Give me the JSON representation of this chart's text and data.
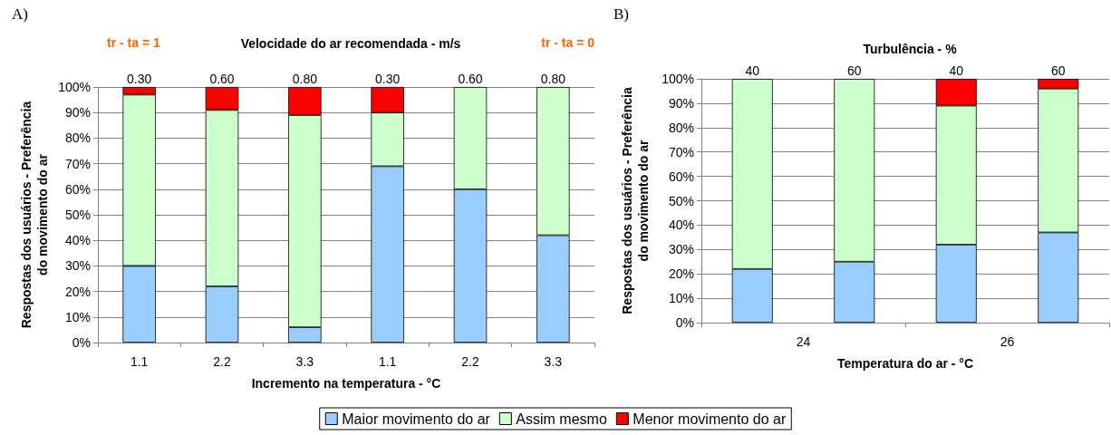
{
  "chart_data": [
    {
      "type": "bar",
      "title": "A)",
      "subtitle": "Velocidade do ar recomendada - m/s",
      "xlabel": "Incremento na temperatura - °C",
      "ylabel": "Respostas dos usuários - Preferência\ndo movimento do ar",
      "categories": [
        "1.1",
        "2.2",
        "3.3",
        "1.1",
        "2.2",
        "3.3"
      ],
      "annotations": [
        "0.30",
        "0.60",
        "0.80",
        "0.30",
        "0.60",
        "0.80",
        "tr - ta = 1",
        "tr - ta = 0"
      ],
      "stacked": true,
      "grid": "y",
      "legend": "bottom",
      "ylim": [
        0,
        100
      ],
      "yticks": [
        {
          "value": 0,
          "label": "0%"
        },
        {
          "value": 10,
          "label": "10%"
        },
        {
          "value": 20,
          "label": "20%"
        },
        {
          "value": 30,
          "label": "30%"
        },
        {
          "value": 40,
          "label": "40%"
        },
        {
          "value": 50,
          "label": "50%"
        },
        {
          "value": 60,
          "label": "60%"
        },
        {
          "value": 70,
          "label": "70%"
        },
        {
          "value": 80,
          "label": "80%"
        },
        {
          "value": 90,
          "label": "90%"
        },
        {
          "value": 100,
          "label": "100%"
        }
      ],
      "series": [
        {
          "name": "Maior movimento do ar",
          "color": "#99ccff",
          "values": [
            30,
            22,
            6,
            69,
            60,
            42
          ]
        },
        {
          "name": "Assim mesmo",
          "color": "#ccffcc",
          "values": [
            67,
            69,
            83,
            21,
            40,
            58
          ]
        },
        {
          "name": "Menor movimento do ar",
          "color": "#ff0000",
          "values": [
            3,
            9,
            11,
            10,
            0,
            0
          ]
        }
      ]
    },
    {
      "type": "bar",
      "title": "B)",
      "subtitle": "Turbulência - %",
      "xlabel": "Temperatura do ar - °C",
      "ylabel": "Respostas dos usuários - Preferência\ndo movimento do ar",
      "categories": [
        "40",
        "60",
        "40",
        "60"
      ],
      "annotations": [
        "24",
        "26"
      ],
      "stacked": true,
      "grid": "y",
      "ylim": [
        0,
        100
      ],
      "yticks": [
        {
          "value": 0,
          "label": "0%"
        },
        {
          "value": 10,
          "label": "10%"
        },
        {
          "value": 20,
          "label": "20%"
        },
        {
          "value": 30,
          "label": "30%"
        },
        {
          "value": 40,
          "label": "40%"
        },
        {
          "value": 50,
          "label": "50%"
        },
        {
          "value": 60,
          "label": "60%"
        },
        {
          "value": 70,
          "label": "70%"
        },
        {
          "value": 80,
          "label": "80%"
        },
        {
          "value": 90,
          "label": "90%"
        },
        {
          "value": 100,
          "label": "100%"
        }
      ],
      "series": [
        {
          "color": "#99ccff",
          "values": [
            22,
            25,
            32,
            37
          ]
        },
        {
          "color": "#ccffcc",
          "values": [
            78,
            75,
            57,
            59
          ]
        },
        {
          "color": "#ff0000",
          "values": [
            0,
            0,
            11,
            4
          ]
        }
      ]
    }
  ]
}
